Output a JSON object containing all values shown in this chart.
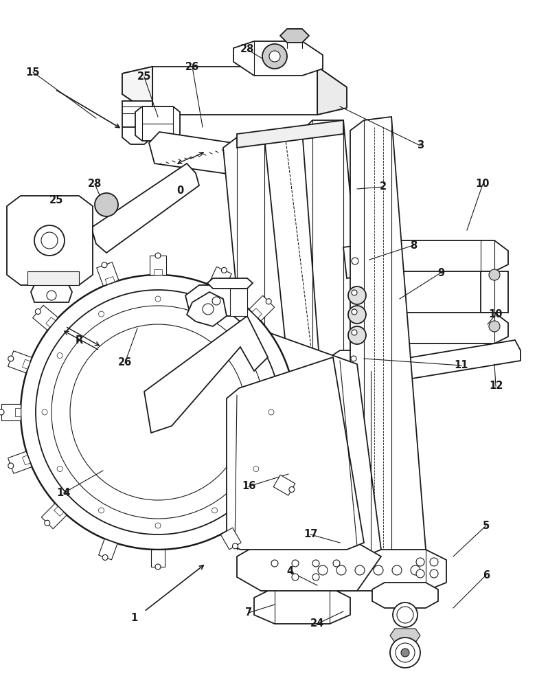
{
  "bg": "#ffffff",
  "lc": "#1a1a1a",
  "lw": 1.3,
  "tlw": 0.8,
  "fig_w": 7.82,
  "fig_h": 10.0,
  "dpi": 100,
  "labels": [
    [
      "15",
      48,
      105
    ],
    [
      "25",
      205,
      115
    ],
    [
      "26",
      275,
      100
    ],
    [
      "28",
      355,
      75
    ],
    [
      "3",
      608,
      215
    ],
    [
      "2",
      555,
      275
    ],
    [
      "8",
      600,
      360
    ],
    [
      "9",
      640,
      400
    ],
    [
      "10",
      700,
      270
    ],
    [
      "10",
      720,
      460
    ],
    [
      "11",
      670,
      535
    ],
    [
      "12",
      720,
      565
    ],
    [
      "14",
      95,
      720
    ],
    [
      "16",
      360,
      710
    ],
    [
      "17",
      450,
      780
    ],
    [
      "4",
      420,
      835
    ],
    [
      "7",
      360,
      895
    ],
    [
      "24",
      460,
      910
    ],
    [
      "5",
      705,
      768
    ],
    [
      "6",
      705,
      840
    ],
    [
      "25",
      85,
      295
    ],
    [
      "28",
      140,
      270
    ],
    [
      "26",
      185,
      530
    ],
    [
      "R",
      115,
      495
    ],
    [
      "1",
      195,
      900
    ],
    [
      "0",
      262,
      280
    ]
  ]
}
